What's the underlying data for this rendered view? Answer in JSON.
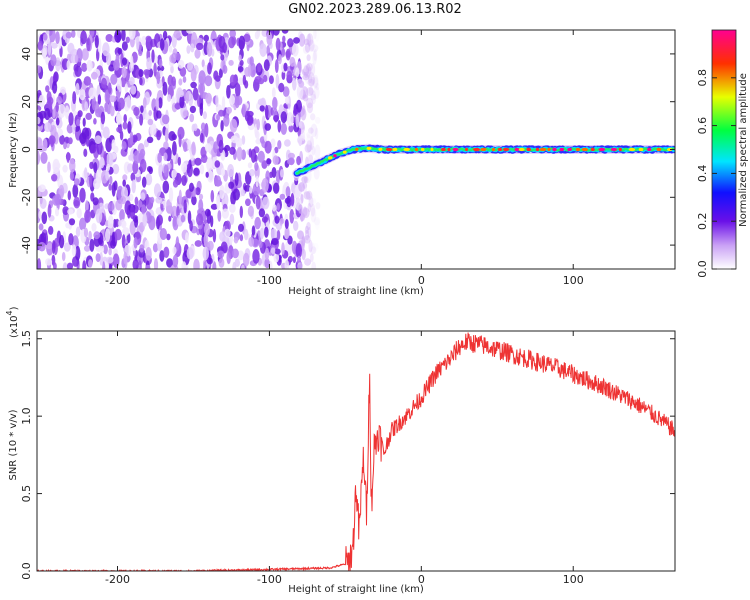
{
  "title": "GN02.2023.289.06.13.R02",
  "chart_data": [
    {
      "type": "heatmap",
      "name": "spectrogram",
      "xlabel": "Height of straight line (km)",
      "ylabel": "Frequency (Hz)",
      "xlim": [
        -253,
        167
      ],
      "ylim": [
        -50,
        50
      ],
      "xticks": [
        -200,
        -100,
        0,
        100
      ],
      "yticks": [
        -40,
        -20,
        0,
        20,
        40
      ],
      "noise_region_x": [
        -253,
        -68
      ],
      "signal_band": {
        "x": [
          -82,
          -75,
          -65,
          -55,
          -45,
          -35,
          -25,
          -15,
          0,
          167
        ],
        "y": [
          -10,
          -8,
          -5,
          -2,
          0,
          0.5,
          0,
          0,
          0,
          0
        ]
      },
      "colorbar": {
        "label": "Normalized spectral amplitude",
        "range": [
          0.0,
          1.0
        ],
        "ticks": [
          "0.0",
          "0.2",
          "0.4",
          "0.6",
          "0.8"
        ],
        "colors": [
          "#ffffff",
          "#8a2be2",
          "#1010ff",
          "#00e5ff",
          "#00ff40",
          "#e8ff00",
          "#ff3000",
          "#ff0090"
        ]
      }
    },
    {
      "type": "line",
      "name": "snr",
      "xlabel": "Height of straight line (km)",
      "ylabel": "SNR (10 * v/v)",
      "y_multiplier": "(x10",
      "y_multiplier_exp": "4",
      "xlim": [
        -253,
        167
      ],
      "ylim": [
        0.0,
        1.55
      ],
      "xticks": [
        -200,
        -100,
        0,
        100
      ],
      "yticks": [
        "0.0",
        "0.5",
        "1.0",
        "1.5"
      ],
      "color": "#ee3333",
      "x": [
        -253,
        -200,
        -150,
        -100,
        -60,
        -48,
        -45,
        -43,
        -41,
        -38,
        -36,
        -34,
        -33,
        -31,
        -28,
        -25,
        -20,
        -10,
        0,
        10,
        20,
        25,
        30,
        40,
        50,
        60,
        70,
        80,
        90,
        100,
        110,
        120,
        130,
        140,
        150,
        160,
        167
      ],
      "y": [
        0.0,
        0.0,
        0.0,
        0.01,
        0.02,
        0.05,
        0.15,
        0.55,
        0.25,
        0.75,
        0.35,
        1.35,
        0.4,
        0.8,
        0.9,
        0.75,
        0.9,
        1.0,
        1.12,
        1.28,
        1.38,
        1.45,
        1.48,
        1.46,
        1.43,
        1.4,
        1.37,
        1.34,
        1.31,
        1.27,
        1.23,
        1.19,
        1.14,
        1.09,
        1.03,
        0.96,
        0.9
      ]
    }
  ]
}
